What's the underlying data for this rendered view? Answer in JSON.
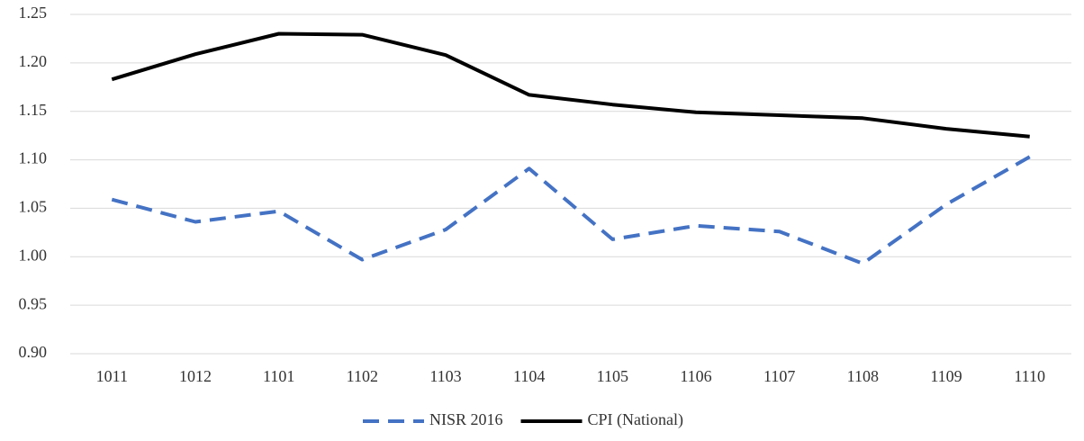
{
  "chart_data": {
    "type": "line",
    "categories": [
      "1011",
      "1012",
      "1101",
      "1102",
      "1103",
      "1104",
      "1105",
      "1106",
      "1107",
      "1108",
      "1109",
      "1110"
    ],
    "series": [
      {
        "name": "NISR 2016",
        "color": "#4472c4",
        "line_style": "dashed",
        "values": [
          1.059,
          1.036,
          1.047,
          0.997,
          1.028,
          1.091,
          1.018,
          1.032,
          1.026,
          0.993,
          1.054,
          1.103
        ]
      },
      {
        "name": "CPI (National)",
        "color": "#000000",
        "line_style": "solid",
        "values": [
          1.183,
          1.209,
          1.23,
          1.229,
          1.208,
          1.167,
          1.157,
          1.149,
          1.146,
          1.143,
          1.132,
          1.124
        ]
      }
    ],
    "ylim": [
      0.9,
      1.25
    ],
    "yticks": [
      {
        "value": 0.9,
        "label": "0.90"
      },
      0.95,
      {
        "value": 1.0,
        "label": "1.00"
      },
      1.05,
      {
        "value": 1.1,
        "label": "1.10"
      },
      1.15,
      {
        "value": 1.2,
        "label": "1.20"
      },
      1.25
    ],
    "grid": true,
    "legend": "bottom"
  }
}
